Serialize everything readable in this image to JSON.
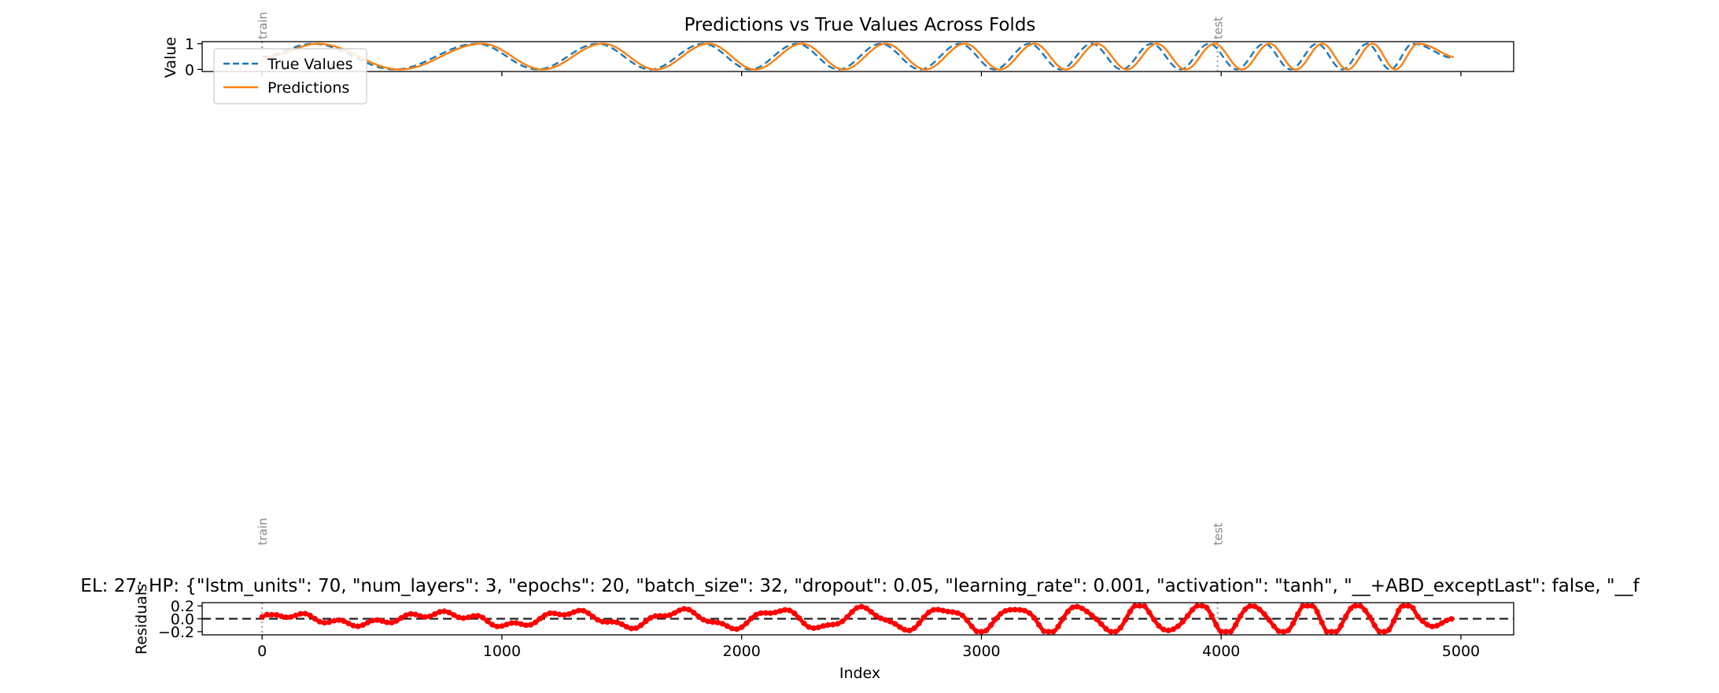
{
  "chart_data": [
    {
      "type": "line",
      "title": "Predictions vs True Values Across Folds",
      "xlabel": "",
      "ylabel": "Value",
      "xlim": [
        -250,
        5220
      ],
      "ylim": [
        -0.08,
        1.08
      ],
      "yticks": [
        0,
        1
      ],
      "xticks": [
        0,
        1000,
        2000,
        3000,
        4000,
        5000
      ],
      "x_start": 0,
      "x_end": 4970,
      "fold_markers": [
        {
          "x": 0,
          "label": "train"
        },
        {
          "x": 3985,
          "label": "test"
        }
      ],
      "series": [
        {
          "name": "True Values",
          "color": "#1f77b4",
          "style": "dashed",
          "description": "chirp-like sine wave between 0 and 1, period decreasing from ~500 to ~200 index units"
        },
        {
          "name": "Predictions",
          "color": "#ff7f0e",
          "style": "solid",
          "description": "closely tracks true values, slightly lagging"
        }
      ],
      "wave": {
        "min": 0,
        "max": 1,
        "peaks": [
          210,
          895,
          1400,
          1840,
          2230,
          2580,
          2910,
          3200,
          3460,
          3710,
          3950,
          4180,
          4400,
          4610,
          4800
        ]
      },
      "legend": {
        "position": "upper-left",
        "entries": [
          "True Values",
          "Predictions"
        ]
      }
    },
    {
      "type": "scatter",
      "title": "EL: 27; HP: {\"lstm_units\": 70, \"num_layers\": 3, \"epochs\": 20, \"batch_size\": 32, \"dropout\": 0.05, \"learning_rate\": 0.001, \"activation\": \"tanh\", \"__+ABD_exceptLast\": false, \"__f",
      "xlabel": "Index",
      "ylabel": "Residuals",
      "xlim": [
        -250,
        5220
      ],
      "ylim": [
        -0.25,
        0.25
      ],
      "yticks": [
        0.2,
        0.0,
        -0.2
      ],
      "ytick_labels": [
        "0.2",
        "0.0",
        "−0.2"
      ],
      "xticks": [
        0,
        1000,
        2000,
        3000,
        4000,
        5000
      ],
      "xtick_labels": [
        "0",
        "1000",
        "2000",
        "3000",
        "4000",
        "5000"
      ],
      "zero_line": {
        "y": 0,
        "style": "dashed",
        "color": "#222222"
      },
      "fold_markers": [
        {
          "x": 0,
          "label": "train"
        },
        {
          "x": 3985,
          "label": "test"
        }
      ],
      "series": [
        {
          "name": "Residuals",
          "color": "#ff0000",
          "style": "markers",
          "description": "oscillating residuals roughly between -0.2 and 0.2"
        }
      ]
    }
  ]
}
